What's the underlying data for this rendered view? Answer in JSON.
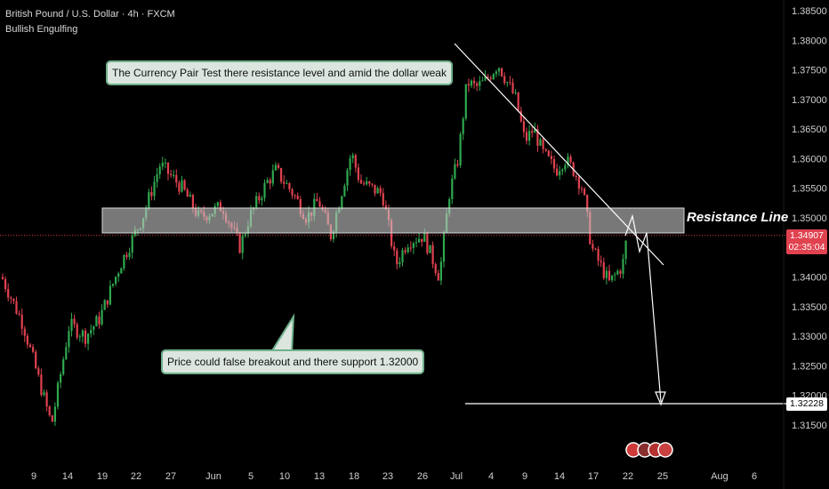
{
  "header": {
    "symbol_line": "British Pound / U.S. Dollar · 4h · FXCM",
    "indicator": "Bullish Engulfing"
  },
  "annotations": {
    "resistance_label": "Resistance Line",
    "callout_top": "The Currency Pair Test there resistance level and amid the dollar weak",
    "callout_bottom": "Price could false breakout and there support 1.32000"
  },
  "price_tags": {
    "current_price": "1.34907",
    "countdown": "02:35:04",
    "target_price": "1.32228"
  },
  "colors": {
    "background": "#000000",
    "up_candle": "#2fa84f",
    "down_candle": "#e0424f",
    "resistance_zone": "#c8c8c8",
    "current_price_tag": "#e0424f",
    "target_tag": "#ffffff"
  },
  "chart_data": {
    "type": "candlestick",
    "title": "British Pound / U.S. Dollar · 4h · FXCM",
    "y_axis": {
      "ticks": [
        "1.38500",
        "1.38000",
        "1.37500",
        "1.37000",
        "1.36500",
        "1.36000",
        "1.35500",
        "1.35000",
        "1.34500",
        "1.34000",
        "1.33500",
        "1.33000",
        "1.32500",
        "1.32000",
        "1.31500"
      ],
      "range": [
        1.3125,
        1.3866
      ]
    },
    "x_axis": {
      "ticks": [
        "9",
        "14",
        "19",
        "22",
        "27",
        "Jun",
        "5",
        "10",
        "13",
        "18",
        "23",
        "26",
        "Jul",
        "4",
        "9",
        "14",
        "17",
        "22",
        "25",
        "Aug",
        "6"
      ]
    },
    "price_path": [
      [
        "9",
        1.34
      ],
      [
        "11",
        1.332
      ],
      [
        "13",
        1.315
      ],
      [
        "15",
        1.332
      ],
      [
        "16",
        1.33
      ],
      [
        "19",
        1.333
      ],
      [
        "21",
        1.342
      ],
      [
        "23",
        1.35
      ],
      [
        "24",
        1.359
      ],
      [
        "26",
        1.355
      ],
      [
        "27",
        1.35
      ],
      [
        "28",
        1.352
      ],
      [
        "30",
        1.345
      ],
      [
        "Jun 2",
        1.35
      ],
      [
        "4",
        1.356
      ],
      [
        "5",
        1.358
      ],
      [
        "6",
        1.354
      ],
      [
        "9",
        1.35
      ],
      [
        "10",
        1.353
      ],
      [
        "11",
        1.347
      ],
      [
        "12",
        1.355
      ],
      [
        "13",
        1.361
      ],
      [
        "16",
        1.356
      ],
      [
        "17",
        1.354
      ],
      [
        "18",
        1.342
      ],
      [
        "19",
        1.346
      ],
      [
        "20",
        1.347
      ],
      [
        "23",
        1.34
      ],
      [
        "24",
        1.354
      ],
      [
        "25",
        1.36
      ],
      [
        "26",
        1.373
      ],
      [
        "27",
        1.372
      ],
      [
        "30",
        1.373
      ],
      [
        "Jul 1",
        1.376
      ],
      [
        "2",
        1.37
      ],
      [
        "3",
        1.363
      ],
      [
        "4",
        1.365
      ],
      [
        "7",
        1.361
      ],
      [
        "8",
        1.358
      ],
      [
        "9",
        1.36
      ],
      [
        "10",
        1.358
      ],
      [
        "11",
        1.355
      ],
      [
        "14",
        1.345
      ],
      [
        "15",
        1.342
      ],
      [
        "16",
        1.339
      ],
      [
        "17",
        1.341
      ],
      [
        "18",
        1.342
      ],
      [
        "21",
        1.347
      ],
      [
        "22",
        1.34907
      ]
    ],
    "resistance_zone": [
      1.35,
      1.354
    ],
    "trendline": [
      [
        "Jul 1",
        1.38
      ],
      [
        "25",
        1.3445
      ]
    ],
    "projection": [
      [
        "22",
        1.34907
      ],
      [
        "24",
        1.352
      ],
      [
        "25",
        1.345
      ],
      [
        "26",
        1.349
      ],
      [
        "27",
        1.3223
      ]
    ],
    "support_level": 1.32228,
    "current_price": 1.34907,
    "grid": false,
    "legend": "none"
  }
}
